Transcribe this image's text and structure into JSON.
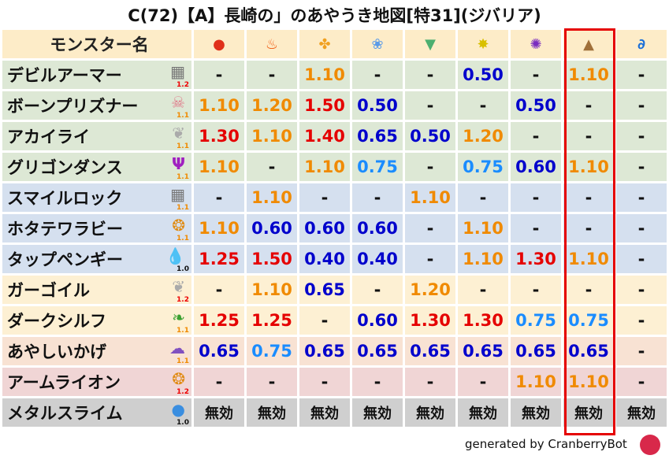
{
  "title": "C(72)【A】長崎の」のあやうき地図[特31](ジバリア)",
  "header": {
    "name_label": "モンスター名",
    "elements": [
      {
        "icon": "fire-ball-icon",
        "glyph": "●",
        "color": "#e0301a"
      },
      {
        "icon": "flame-icon",
        "glyph": "♨",
        "color": "#f05a10"
      },
      {
        "icon": "explosion-icon",
        "glyph": "✤",
        "color": "#f0a020"
      },
      {
        "icon": "ice-flower-icon",
        "glyph": "❀",
        "color": "#5b9be8"
      },
      {
        "icon": "tornado-icon",
        "glyph": "▼",
        "color": "#4caf70"
      },
      {
        "icon": "lightning-star-icon",
        "glyph": "✸",
        "color": "#d8c000"
      },
      {
        "icon": "dark-swirl-icon",
        "glyph": "✺",
        "color": "#7a2cc0"
      },
      {
        "icon": "earth-rock-icon",
        "glyph": "▲",
        "color": "#a0703a"
      },
      {
        "icon": "water-wave-icon",
        "glyph": "∂",
        "color": "#1b6fd8"
      }
    ]
  },
  "value_colors": {
    "high": "#e50000",
    "mid": "#f08a00",
    "low": "#0000cc",
    "light": "#1a8cff"
  },
  "highlighted_column": 8,
  "rows": [
    {
      "group": "g",
      "name": "デビルアーマー",
      "icon": "brick-wall-icon",
      "glyph": "▦",
      "icolor": "#777",
      "level": "1.2",
      "values": [
        "-",
        "-",
        "1.10",
        "-",
        "-",
        "0.50",
        "-",
        "1.10",
        "-"
      ]
    },
    {
      "group": "g",
      "name": "ボーンプリズナー",
      "icon": "skull-icon",
      "glyph": "☠",
      "icolor": "#e07a8a",
      "level": "1.1",
      "values": [
        "1.10",
        "1.20",
        "1.50",
        "0.50",
        "-",
        "-",
        "0.50",
        "-",
        "-"
      ]
    },
    {
      "group": "g",
      "name": "アカイライ",
      "icon": "wing-icon",
      "glyph": "❦",
      "icolor": "#aaa",
      "level": "1.1",
      "values": [
        "1.30",
        "1.10",
        "1.40",
        "0.65",
        "0.50",
        "1.20",
        "-",
        "-",
        "-"
      ]
    },
    {
      "group": "g",
      "name": "グリゴンダンス",
      "icon": "trident-icon",
      "glyph": "Ψ",
      "icolor": "#a020c0",
      "level": "1.1",
      "values": [
        "1.10",
        "-",
        "1.10",
        "0.75",
        "-",
        "0.75",
        "0.60",
        "1.10",
        "-"
      ]
    },
    {
      "group": "b",
      "name": "スマイルロック",
      "icon": "brick-wall-icon",
      "glyph": "▦",
      "icolor": "#777",
      "level": "1.1",
      "values": [
        "-",
        "1.10",
        "-",
        "-",
        "1.10",
        "-",
        "-",
        "-",
        "-"
      ]
    },
    {
      "group": "b",
      "name": "ホタテワラビー",
      "icon": "paw-icon",
      "glyph": "❂",
      "icolor": "#e08a10",
      "level": "1.1",
      "values": [
        "1.10",
        "0.60",
        "0.60",
        "0.60",
        "-",
        "1.10",
        "-",
        "-",
        "-"
      ]
    },
    {
      "group": "b",
      "name": "タップペンギー",
      "icon": "water-drop-icon",
      "glyph": "💧",
      "icolor": "#3a8ee0",
      "level": "1.0",
      "values": [
        "1.25",
        "1.50",
        "0.40",
        "0.40",
        "-",
        "1.10",
        "1.30",
        "1.10",
        "-"
      ]
    },
    {
      "group": "y",
      "name": "ガーゴイル",
      "icon": "wing-icon",
      "glyph": "❦",
      "icolor": "#aaa",
      "level": "1.2",
      "values": [
        "-",
        "1.10",
        "0.65",
        "-",
        "1.20",
        "-",
        "-",
        "-",
        "-"
      ]
    },
    {
      "group": "y",
      "name": "ダークシルフ",
      "icon": "leaf-icon",
      "glyph": "❧",
      "icolor": "#3aa030",
      "level": "1.1",
      "values": [
        "1.25",
        "1.25",
        "-",
        "0.60",
        "1.30",
        "1.30",
        "0.75",
        "0.75",
        "-"
      ]
    },
    {
      "group": "p",
      "name": "あやしいかげ",
      "icon": "shadow-icon",
      "glyph": "☁",
      "icolor": "#8050c0",
      "level": "1.1",
      "values": [
        "0.65",
        "0.75",
        "0.65",
        "0.65",
        "0.65",
        "0.65",
        "0.65",
        "0.65",
        "-"
      ]
    },
    {
      "group": "r",
      "name": "アームライオン",
      "icon": "paw-icon",
      "glyph": "❂",
      "icolor": "#e08a10",
      "level": "1.2",
      "values": [
        "-",
        "-",
        "-",
        "-",
        "-",
        "-",
        "1.10",
        "1.10",
        "-"
      ]
    },
    {
      "group": "m",
      "name": "メタルスライム",
      "icon": "slime-icon",
      "glyph": "●",
      "icolor": "#3a8ee0",
      "level": "1.0",
      "values": [
        "無効",
        "無効",
        "無効",
        "無効",
        "無効",
        "無効",
        "無効",
        "無効",
        "無効"
      ]
    }
  ],
  "footer": "generated by CranberryBot"
}
